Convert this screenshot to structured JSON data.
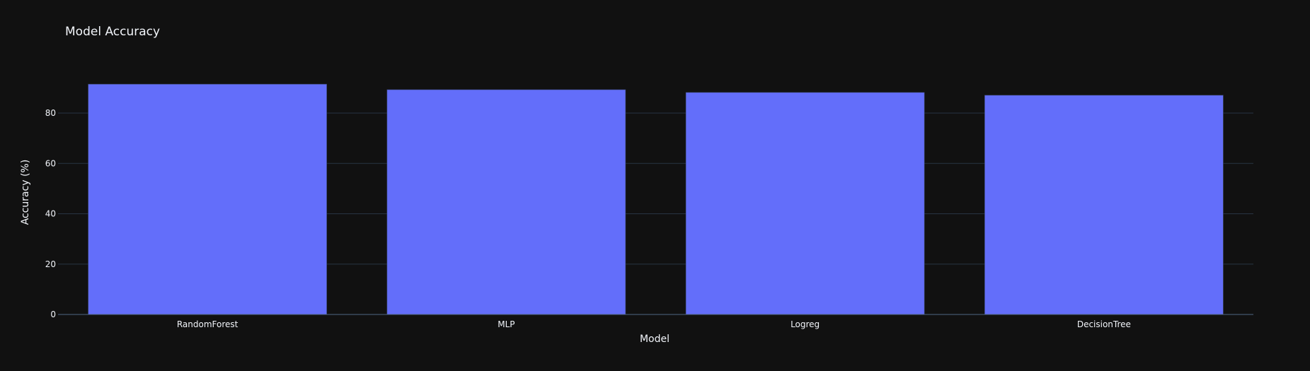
{
  "chart_data": {
    "type": "bar",
    "title": "Model Accuracy",
    "xlabel": "Model",
    "ylabel": "Accuracy (%)",
    "categories": [
      "RandomForest",
      "MLP",
      "Logreg",
      "DecisionTree"
    ],
    "values": [
      91.5,
      89.3,
      88.2,
      87.1
    ],
    "ylim": [
      0,
      96.3
    ],
    "yticks": [
      0,
      20,
      40,
      60,
      80
    ],
    "grid": true,
    "legend": "none",
    "colors": {
      "background": "#111111",
      "bar": "#636efa",
      "grid": "#283442",
      "zeroline": "#506784",
      "text": "#f2f5fa"
    }
  }
}
